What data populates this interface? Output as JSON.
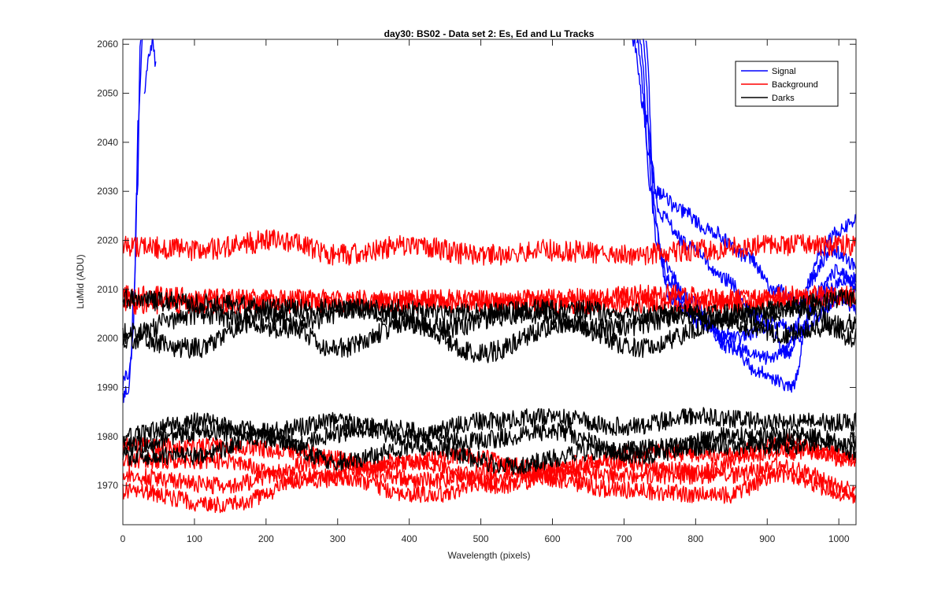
{
  "chart_data": {
    "type": "line",
    "title": "day30: BS02 - Data set 2: Es, Ed and Lu Tracks",
    "xlabel": "Wavelength (pixels)",
    "ylabel": "LuMid (ADU)",
    "xlim": [
      0,
      1024
    ],
    "ylim": [
      1962,
      2061
    ],
    "xticks": [
      0,
      100,
      200,
      300,
      400,
      500,
      600,
      700,
      800,
      900,
      1000
    ],
    "yticks": [
      1970,
      1980,
      1990,
      2000,
      2010,
      2020,
      2030,
      2040,
      2050,
      2060
    ],
    "grid": false,
    "legend_position": "top-right",
    "legend": [
      {
        "label": "Signal",
        "color": "#0000ff"
      },
      {
        "label": "Background",
        "color": "#ff0000"
      },
      {
        "label": "Darks",
        "color": "#000000"
      }
    ],
    "series": [
      {
        "group": "Signal",
        "color": "#0000ff",
        "noise": 1.2,
        "points": [
          [
            0,
            1988
          ],
          [
            8,
            1990
          ],
          [
            14,
            2000
          ],
          [
            20,
            2030
          ],
          [
            25,
            2061
          ]
        ]
      },
      {
        "group": "Signal",
        "color": "#0000ff",
        "noise": 1.2,
        "points": [
          [
            0,
            1991
          ],
          [
            10,
            1993
          ],
          [
            16,
            2010
          ],
          [
            22,
            2045
          ],
          [
            27,
            2061
          ]
        ]
      },
      {
        "group": "Signal",
        "color": "#0000ff",
        "noise": 1.0,
        "points": [
          [
            30,
            2050
          ],
          [
            36,
            2058
          ],
          [
            42,
            2060
          ],
          [
            46,
            2055
          ]
        ]
      },
      {
        "group": "Signal",
        "color": "#0000ff",
        "noise": 0.9,
        "points": [
          [
            712,
            2061
          ],
          [
            730,
            2045
          ],
          [
            745,
            2030
          ],
          [
            780,
            2026
          ],
          [
            820,
            2022
          ],
          [
            870,
            2017
          ],
          [
            910,
            2010
          ],
          [
            950,
            2007
          ],
          [
            975,
            2018
          ],
          [
            1000,
            2022
          ],
          [
            1024,
            2024
          ]
        ]
      },
      {
        "group": "Signal",
        "color": "#0000ff",
        "noise": 0.9,
        "points": [
          [
            718,
            2061
          ],
          [
            735,
            2038
          ],
          [
            750,
            2025
          ],
          [
            790,
            2019
          ],
          [
            840,
            2012
          ],
          [
            890,
            2004
          ],
          [
            930,
            1997
          ],
          [
            960,
            2012
          ],
          [
            990,
            2018
          ],
          [
            1024,
            2015
          ]
        ]
      },
      {
        "group": "Signal",
        "color": "#0000ff",
        "noise": 0.9,
        "points": [
          [
            722,
            2061
          ],
          [
            738,
            2030
          ],
          [
            755,
            2015
          ],
          [
            790,
            2008
          ],
          [
            840,
            2000
          ],
          [
            890,
            1993
          ],
          [
            935,
            1990
          ],
          [
            960,
            2006
          ],
          [
            1000,
            2014
          ],
          [
            1024,
            2010
          ]
        ]
      },
      {
        "group": "Signal",
        "color": "#0000ff",
        "noise": 0.9,
        "points": [
          [
            726,
            2061
          ],
          [
            742,
            2025
          ],
          [
            760,
            2012
          ],
          [
            800,
            2005
          ],
          [
            850,
            1998
          ],
          [
            900,
            1996
          ],
          [
            945,
            2000
          ],
          [
            975,
            2010
          ],
          [
            1024,
            2012
          ]
        ]
      },
      {
        "group": "Signal",
        "color": "#0000ff",
        "noise": 0.9,
        "points": [
          [
            730,
            2061
          ],
          [
            745,
            2020
          ],
          [
            765,
            2008
          ],
          [
            810,
            2003
          ],
          [
            860,
            2000
          ],
          [
            910,
            2003
          ],
          [
            950,
            2002
          ],
          [
            1000,
            2008
          ],
          [
            1024,
            2006
          ]
        ]
      },
      {
        "group": "Background",
        "color": "#ff0000",
        "noise": 1.4,
        "points": [
          [
            0,
            2019
          ],
          [
            100,
            2018
          ],
          [
            220,
            2020
          ],
          [
            300,
            2017
          ],
          [
            400,
            2019
          ],
          [
            500,
            2017
          ],
          [
            600,
            2018
          ],
          [
            700,
            2017
          ],
          [
            800,
            2018
          ],
          [
            900,
            2019
          ],
          [
            1024,
            2019
          ]
        ]
      },
      {
        "group": "Background",
        "color": "#ff0000",
        "noise": 1.3,
        "points": [
          [
            0,
            2009
          ],
          [
            150,
            2008
          ],
          [
            300,
            2008
          ],
          [
            450,
            2007
          ],
          [
            600,
            2008
          ],
          [
            750,
            2009
          ],
          [
            850,
            2008
          ],
          [
            950,
            2008
          ],
          [
            1024,
            2009
          ]
        ]
      },
      {
        "group": "Background",
        "color": "#ff0000",
        "noise": 1.3,
        "points": [
          [
            0,
            2007
          ],
          [
            150,
            2007
          ],
          [
            300,
            2007
          ],
          [
            450,
            2008
          ],
          [
            600,
            2007
          ],
          [
            750,
            2007
          ],
          [
            850,
            2007
          ],
          [
            950,
            2009
          ],
          [
            1024,
            2008
          ]
        ]
      },
      {
        "group": "Background",
        "color": "#ff0000",
        "noise": 1.1,
        "points": [
          [
            0,
            1969
          ],
          [
            140,
            1966
          ],
          [
            280,
            1972
          ],
          [
            420,
            1968
          ],
          [
            560,
            1972
          ],
          [
            700,
            1969
          ],
          [
            840,
            1968
          ],
          [
            920,
            1972
          ],
          [
            1024,
            1968
          ]
        ]
      },
      {
        "group": "Background",
        "color": "#ff0000",
        "noise": 1.1,
        "points": [
          [
            0,
            1972
          ],
          [
            140,
            1970
          ],
          [
            280,
            1975
          ],
          [
            420,
            1971
          ],
          [
            560,
            1974
          ],
          [
            700,
            1972
          ],
          [
            840,
            1972
          ],
          [
            920,
            1974
          ],
          [
            1024,
            1969
          ]
        ]
      },
      {
        "group": "Background",
        "color": "#ff0000",
        "noise": 1.1,
        "points": [
          [
            0,
            1975
          ],
          [
            130,
            1975
          ],
          [
            260,
            1971
          ],
          [
            400,
            1975
          ],
          [
            530,
            1970
          ],
          [
            660,
            1975
          ],
          [
            800,
            1973
          ],
          [
            920,
            1979
          ],
          [
            1024,
            1975
          ]
        ]
      },
      {
        "group": "Background",
        "color": "#ff0000",
        "noise": 1.1,
        "points": [
          [
            0,
            1978
          ],
          [
            120,
            1978
          ],
          [
            240,
            1977
          ],
          [
            360,
            1974
          ],
          [
            480,
            1976
          ],
          [
            600,
            1972
          ],
          [
            720,
            1977
          ],
          [
            850,
            1976
          ],
          [
            970,
            1977
          ],
          [
            1024,
            1976
          ]
        ]
      },
      {
        "group": "Darks",
        "color": "#000000",
        "noise": 1.3,
        "points": [
          [
            0,
            2008
          ],
          [
            120,
            2007
          ],
          [
            240,
            2006
          ],
          [
            360,
            2006
          ],
          [
            480,
            2005
          ],
          [
            600,
            2006
          ],
          [
            720,
            2005
          ],
          [
            850,
            2005
          ],
          [
            1024,
            2008
          ]
        ]
      },
      {
        "group": "Darks",
        "color": "#000000",
        "noise": 1.3,
        "points": [
          [
            0,
            2001
          ],
          [
            110,
            2005
          ],
          [
            220,
            2002
          ],
          [
            330,
            2006
          ],
          [
            440,
            2002
          ],
          [
            560,
            2005
          ],
          [
            680,
            2002
          ],
          [
            800,
            2005
          ],
          [
            920,
            2001
          ],
          [
            1024,
            2003
          ]
        ]
      },
      {
        "group": "Darks",
        "color": "#000000",
        "noise": 1.3,
        "points": [
          [
            0,
            2000
          ],
          [
            100,
            1998
          ],
          [
            200,
            2005
          ],
          [
            300,
            1998
          ],
          [
            400,
            2003
          ],
          [
            500,
            1997
          ],
          [
            620,
            2003
          ],
          [
            720,
            1998
          ],
          [
            850,
            2004
          ],
          [
            950,
            2006
          ],
          [
            1024,
            2000
          ]
        ]
      },
      {
        "group": "Darks",
        "color": "#000000",
        "noise": 1.2,
        "points": [
          [
            0,
            1980
          ],
          [
            100,
            1983
          ],
          [
            200,
            1981
          ],
          [
            300,
            1983
          ],
          [
            400,
            1980
          ],
          [
            500,
            1983
          ],
          [
            600,
            1984
          ],
          [
            700,
            1982
          ],
          [
            800,
            1984
          ],
          [
            900,
            1983
          ],
          [
            1024,
            1983
          ]
        ]
      },
      {
        "group": "Darks",
        "color": "#000000",
        "noise": 1.2,
        "points": [
          [
            0,
            1978
          ],
          [
            120,
            1981
          ],
          [
            240,
            1979
          ],
          [
            360,
            1982
          ],
          [
            480,
            1979
          ],
          [
            600,
            1981
          ],
          [
            720,
            1976
          ],
          [
            850,
            1980
          ],
          [
            970,
            1980
          ],
          [
            1024,
            1977
          ]
        ]
      },
      {
        "group": "Darks",
        "color": "#000000",
        "noise": 1.2,
        "points": [
          [
            0,
            1976
          ],
          [
            100,
            1976
          ],
          [
            200,
            1980
          ],
          [
            300,
            1975
          ],
          [
            420,
            1978
          ],
          [
            540,
            1974
          ],
          [
            660,
            1977
          ],
          [
            780,
            1978
          ],
          [
            900,
            1978
          ],
          [
            1024,
            1979
          ]
        ]
      }
    ]
  }
}
